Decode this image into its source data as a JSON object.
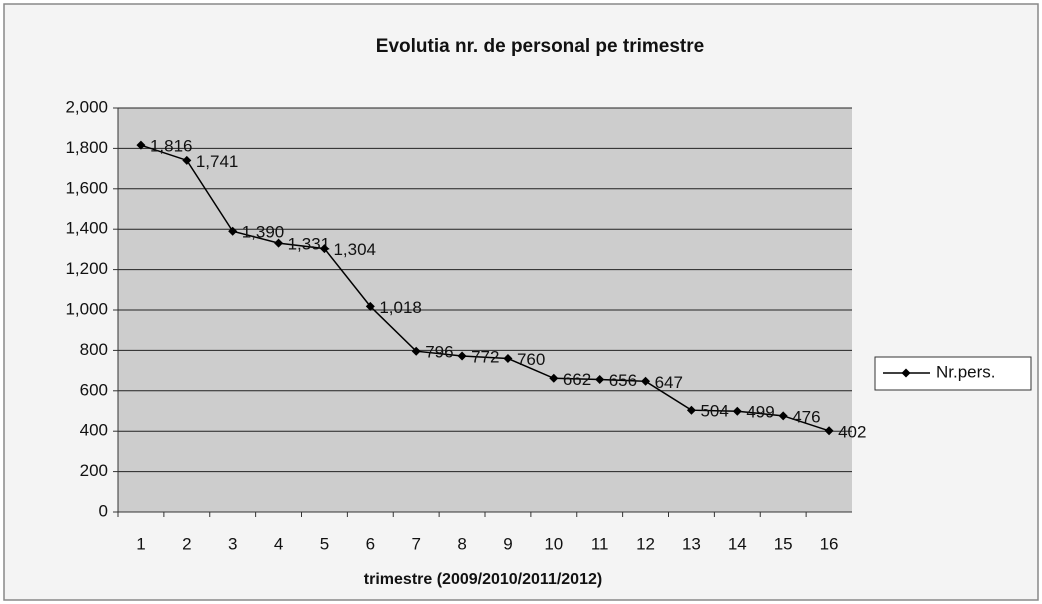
{
  "chart_data": {
    "type": "line",
    "title": "Evolutia nr. de personal pe trimestre",
    "x_label": "trimestre (2009/2010/2011/2012)",
    "categories": [
      1,
      2,
      3,
      4,
      5,
      6,
      7,
      8,
      9,
      10,
      11,
      12,
      13,
      14,
      15,
      16
    ],
    "series": [
      {
        "name": "Nr.pers.",
        "color": "#000000",
        "values": [
          1816,
          1741,
          1390,
          1331,
          1304,
          1018,
          796,
          772,
          760,
          662,
          656,
          647,
          504,
          499,
          476,
          402
        ],
        "value_labels": [
          "1,816",
          "1,741",
          "1,390",
          "1,331",
          "1,304",
          "1,018",
          "796",
          "772",
          "760",
          "662",
          "656",
          "647",
          "504",
          "499",
          "476",
          "402"
        ]
      }
    ],
    "ylim": [
      0,
      2000
    ],
    "yticks": [
      0,
      200,
      400,
      600,
      800,
      {
        "value": 1000,
        "label": "1,000"
      },
      {
        "value": 1200,
        "label": "1,200"
      },
      {
        "value": 1400,
        "label": "1,400"
      },
      {
        "value": 1600,
        "label": "1,600"
      },
      {
        "value": 1800,
        "label": "1,800"
      },
      {
        "value": 2000,
        "label": "2,000"
      }
    ],
    "grid": true,
    "legend": "right"
  }
}
